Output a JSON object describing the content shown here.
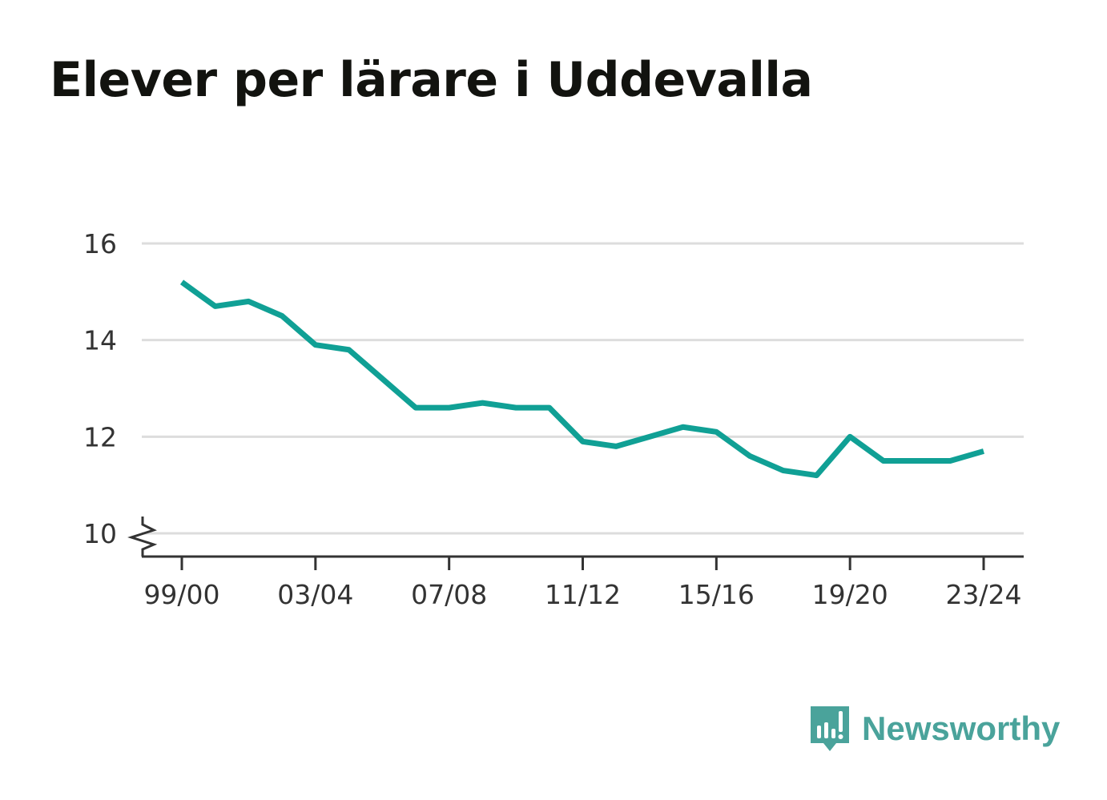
{
  "title": "Elever per lärare i Uddevalla",
  "brand": {
    "name": "Newsworthy",
    "color": "#4aa39b",
    "icon": "newsworthy-logo-icon"
  },
  "colors": {
    "line": "#10a095",
    "grid": "#dddddd",
    "axis": "#333333",
    "text": "#333333"
  },
  "chart_data": {
    "type": "line",
    "title": "Elever per lärare i Uddevalla",
    "xlabel": "",
    "ylabel": "",
    "ylim": [
      9.5,
      16
    ],
    "yticks": [
      10,
      12,
      14,
      16
    ],
    "y_axis_break": true,
    "grid": true,
    "x_tick_labels": [
      "99/00",
      "03/04",
      "07/08",
      "11/12",
      "15/16",
      "19/20",
      "23/24"
    ],
    "categories": [
      "99/00",
      "00/01",
      "01/02",
      "02/03",
      "03/04",
      "04/05",
      "05/06",
      "06/07",
      "07/08",
      "08/09",
      "09/10",
      "10/11",
      "11/12",
      "12/13",
      "13/14",
      "14/15",
      "15/16",
      "16/17",
      "17/18",
      "18/19",
      "19/20",
      "20/21",
      "21/22",
      "22/23",
      "23/24"
    ],
    "series": [
      {
        "values": [
          15.2,
          14.7,
          14.8,
          14.5,
          13.9,
          13.8,
          13.2,
          12.6,
          12.6,
          12.7,
          12.6,
          12.6,
          11.9,
          11.8,
          12.0,
          12.2,
          12.1,
          11.6,
          11.3,
          11.2,
          12.0,
          11.5,
          11.5,
          11.5,
          11.7
        ]
      }
    ]
  }
}
